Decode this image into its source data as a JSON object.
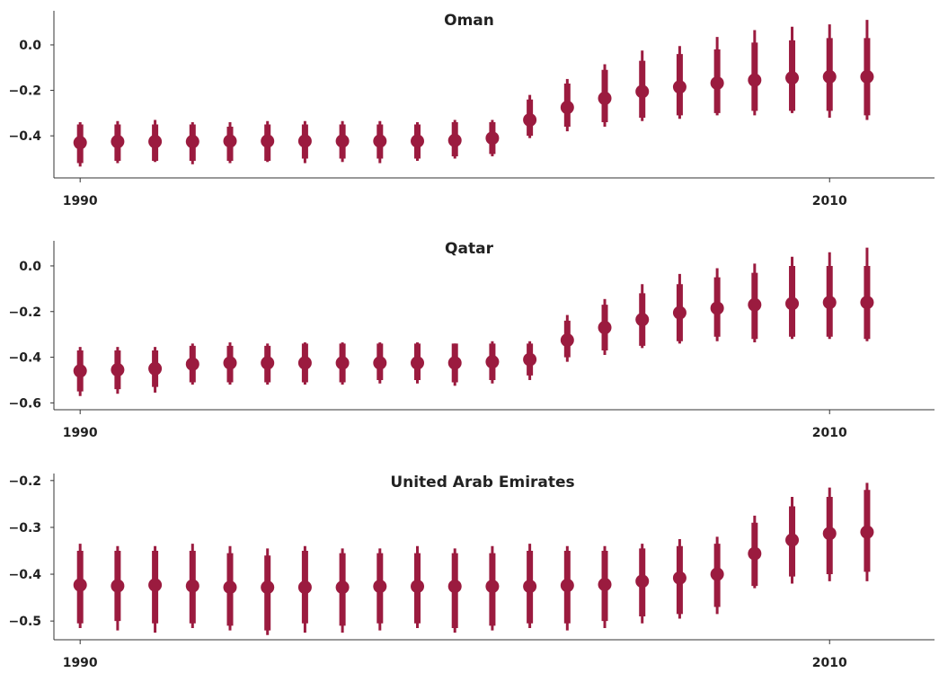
{
  "colors": {
    "accent": "#9b1b3f",
    "axis": "#333333",
    "text": "#222222",
    "background": "#ffffff"
  },
  "chart_data": [
    {
      "type": "scatter",
      "title": "Oman",
      "xlabel": "",
      "ylabel": "",
      "x": [
        1990,
        1991,
        1992,
        1993,
        1994,
        1995,
        1996,
        1997,
        1998,
        1999,
        2000,
        2001,
        2002,
        2003,
        2004,
        2005,
        2006,
        2007,
        2008,
        2009,
        2010,
        2011
      ],
      "y": [
        -0.43,
        -0.425,
        -0.425,
        -0.425,
        -0.423,
        -0.423,
        -0.423,
        -0.423,
        -0.423,
        -0.423,
        -0.42,
        -0.41,
        -0.33,
        -0.275,
        -0.235,
        -0.205,
        -0.185,
        -0.168,
        -0.155,
        -0.145,
        -0.14,
        -0.14
      ],
      "inner_interval": [
        [
          -0.52,
          -0.35
        ],
        [
          -0.51,
          -0.35
        ],
        [
          -0.51,
          -0.35
        ],
        [
          -0.51,
          -0.35
        ],
        [
          -0.51,
          -0.36
        ],
        [
          -0.51,
          -0.35
        ],
        [
          -0.5,
          -0.35
        ],
        [
          -0.5,
          -0.35
        ],
        [
          -0.5,
          -0.35
        ],
        [
          -0.5,
          -0.35
        ],
        [
          -0.49,
          -0.34
        ],
        [
          -0.48,
          -0.34
        ],
        [
          -0.4,
          -0.24
        ],
        [
          -0.36,
          -0.17
        ],
        [
          -0.34,
          -0.11
        ],
        [
          -0.32,
          -0.07
        ],
        [
          -0.31,
          -0.04
        ],
        [
          -0.3,
          -0.02
        ],
        [
          -0.29,
          0.01
        ],
        [
          -0.29,
          0.02
        ],
        [
          -0.29,
          0.03
        ],
        [
          -0.31,
          0.03
        ]
      ],
      "outer_interval": [
        [
          -0.535,
          -0.34
        ],
        [
          -0.52,
          -0.335
        ],
        [
          -0.515,
          -0.33
        ],
        [
          -0.525,
          -0.34
        ],
        [
          -0.52,
          -0.34
        ],
        [
          -0.515,
          -0.335
        ],
        [
          -0.52,
          -0.335
        ],
        [
          -0.515,
          -0.335
        ],
        [
          -0.52,
          -0.335
        ],
        [
          -0.51,
          -0.34
        ],
        [
          -0.5,
          -0.33
        ],
        [
          -0.49,
          -0.33
        ],
        [
          -0.41,
          -0.22
        ],
        [
          -0.38,
          -0.15
        ],
        [
          -0.36,
          -0.085
        ],
        [
          -0.335,
          -0.025
        ],
        [
          -0.325,
          -0.005
        ],
        [
          -0.31,
          0.035
        ],
        [
          -0.31,
          0.065
        ],
        [
          -0.3,
          0.08
        ],
        [
          -0.32,
          0.09
        ],
        [
          -0.33,
          0.11
        ]
      ],
      "xticks": [
        1990,
        2010
      ],
      "yticks": [
        0.0,
        -0.2,
        -0.4
      ],
      "ytick_labels": [
        "0.0",
        "−0.2",
        "−0.4"
      ],
      "xlim": [
        1989.3,
        2012.8
      ],
      "ylim": [
        -0.585,
        0.15
      ],
      "grid": false
    },
    {
      "type": "scatter",
      "title": "Qatar",
      "xlabel": "",
      "ylabel": "",
      "x": [
        1990,
        1991,
        1992,
        1993,
        1994,
        1995,
        1996,
        1997,
        1998,
        1999,
        2000,
        2001,
        2002,
        2003,
        2004,
        2005,
        2006,
        2007,
        2008,
        2009,
        2010,
        2011
      ],
      "y": [
        -0.46,
        -0.455,
        -0.45,
        -0.43,
        -0.425,
        -0.425,
        -0.425,
        -0.425,
        -0.425,
        -0.425,
        -0.425,
        -0.42,
        -0.41,
        -0.325,
        -0.27,
        -0.235,
        -0.205,
        -0.185,
        -0.17,
        -0.165,
        -0.16,
        -0.16
      ],
      "inner_interval": [
        [
          -0.55,
          -0.37
        ],
        [
          -0.54,
          -0.37
        ],
        [
          -0.53,
          -0.37
        ],
        [
          -0.51,
          -0.35
        ],
        [
          -0.51,
          -0.35
        ],
        [
          -0.51,
          -0.35
        ],
        [
          -0.51,
          -0.34
        ],
        [
          -0.51,
          -0.34
        ],
        [
          -0.5,
          -0.34
        ],
        [
          -0.5,
          -0.34
        ],
        [
          -0.51,
          -0.34
        ],
        [
          -0.5,
          -0.34
        ],
        [
          -0.48,
          -0.34
        ],
        [
          -0.4,
          -0.24
        ],
        [
          -0.37,
          -0.17
        ],
        [
          -0.35,
          -0.12
        ],
        [
          -0.33,
          -0.08
        ],
        [
          -0.31,
          -0.05
        ],
        [
          -0.32,
          -0.03
        ],
        [
          -0.31,
          -0.0
        ],
        [
          -0.31,
          0.0
        ],
        [
          -0.32,
          0.0
        ]
      ],
      "outer_interval": [
        [
          -0.57,
          -0.355
        ],
        [
          -0.56,
          -0.355
        ],
        [
          -0.555,
          -0.355
        ],
        [
          -0.52,
          -0.34
        ],
        [
          -0.52,
          -0.335
        ],
        [
          -0.52,
          -0.34
        ],
        [
          -0.52,
          -0.335
        ],
        [
          -0.52,
          -0.335
        ],
        [
          -0.515,
          -0.335
        ],
        [
          -0.515,
          -0.335
        ],
        [
          -0.525,
          -0.34
        ],
        [
          -0.515,
          -0.33
        ],
        [
          -0.5,
          -0.33
        ],
        [
          -0.42,
          -0.215
        ],
        [
          -0.39,
          -0.145
        ],
        [
          -0.36,
          -0.08
        ],
        [
          -0.34,
          -0.035
        ],
        [
          -0.33,
          -0.01
        ],
        [
          -0.335,
          0.01
        ],
        [
          -0.32,
          0.04
        ],
        [
          -0.32,
          0.06
        ],
        [
          -0.33,
          0.08
        ]
      ],
      "xticks": [
        1990,
        2010
      ],
      "yticks": [
        0.0,
        -0.2,
        -0.4,
        -0.6
      ],
      "ytick_labels": [
        "0.0",
        "−0.2",
        "−0.4",
        "−0.6"
      ],
      "xlim": [
        1989.3,
        2012.8
      ],
      "ylim": [
        -0.63,
        0.11
      ],
      "grid": false
    },
    {
      "type": "scatter",
      "title": "United Arab Emirates",
      "xlabel": "",
      "ylabel": "",
      "x": [
        1990,
        1991,
        1992,
        1993,
        1994,
        1995,
        1996,
        1997,
        1998,
        1999,
        2000,
        2001,
        2002,
        2003,
        2004,
        2005,
        2006,
        2007,
        2008,
        2009,
        2010,
        2011
      ],
      "y": [
        -0.423,
        -0.425,
        -0.423,
        -0.425,
        -0.428,
        -0.428,
        -0.428,
        -0.428,
        -0.426,
        -0.426,
        -0.426,
        -0.426,
        -0.426,
        -0.424,
        -0.422,
        -0.415,
        -0.408,
        -0.4,
        -0.356,
        -0.327,
        -0.313,
        -0.31
      ],
      "inner_interval": [
        [
          -0.505,
          -0.35
        ],
        [
          -0.5,
          -0.35
        ],
        [
          -0.505,
          -0.35
        ],
        [
          -0.505,
          -0.35
        ],
        [
          -0.51,
          -0.355
        ],
        [
          -0.52,
          -0.36
        ],
        [
          -0.505,
          -0.35
        ],
        [
          -0.51,
          -0.355
        ],
        [
          -0.505,
          -0.355
        ],
        [
          -0.505,
          -0.355
        ],
        [
          -0.515,
          -0.355
        ],
        [
          -0.51,
          -0.355
        ],
        [
          -0.505,
          -0.35
        ],
        [
          -0.505,
          -0.35
        ],
        [
          -0.5,
          -0.35
        ],
        [
          -0.49,
          -0.345
        ],
        [
          -0.485,
          -0.34
        ],
        [
          -0.47,
          -0.335
        ],
        [
          -0.425,
          -0.29
        ],
        [
          -0.405,
          -0.255
        ],
        [
          -0.4,
          -0.235
        ],
        [
          -0.395,
          -0.22
        ]
      ],
      "outer_interval": [
        [
          -0.515,
          -0.335
        ],
        [
          -0.52,
          -0.34
        ],
        [
          -0.525,
          -0.34
        ],
        [
          -0.515,
          -0.335
        ],
        [
          -0.52,
          -0.34
        ],
        [
          -0.53,
          -0.345
        ],
        [
          -0.525,
          -0.34
        ],
        [
          -0.525,
          -0.345
        ],
        [
          -0.52,
          -0.345
        ],
        [
          -0.515,
          -0.34
        ],
        [
          -0.525,
          -0.345
        ],
        [
          -0.52,
          -0.34
        ],
        [
          -0.515,
          -0.335
        ],
        [
          -0.52,
          -0.34
        ],
        [
          -0.515,
          -0.34
        ],
        [
          -0.505,
          -0.335
        ],
        [
          -0.495,
          -0.325
        ],
        [
          -0.485,
          -0.32
        ],
        [
          -0.43,
          -0.275
        ],
        [
          -0.42,
          -0.235
        ],
        [
          -0.415,
          -0.215
        ],
        [
          -0.415,
          -0.205
        ]
      ],
      "xticks": [
        1990,
        2010
      ],
      "yticks": [
        -0.2,
        -0.3,
        -0.4,
        -0.5
      ],
      "ytick_labels": [
        "−0.2",
        "−0.3",
        "−0.4",
        "−0.5"
      ],
      "xlim": [
        1989.3,
        2012.8
      ],
      "ylim": [
        -0.54,
        -0.185
      ],
      "grid": false
    }
  ]
}
